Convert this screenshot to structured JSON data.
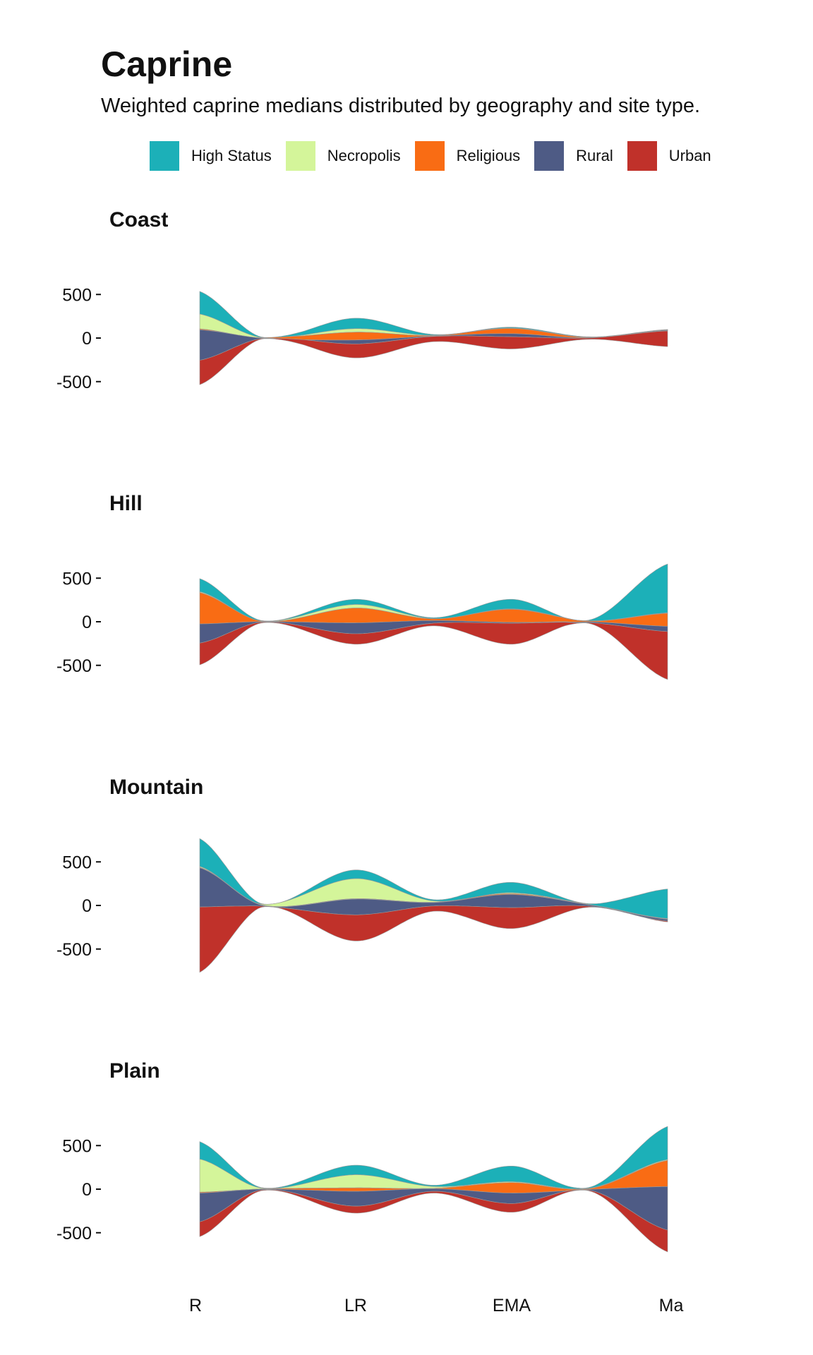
{
  "title": "Caprine",
  "subtitle": "Weighted caprine medians distributed by geography and site type.",
  "legend": [
    {
      "name": "High Status",
      "color": "#1cb0b8"
    },
    {
      "name": "Necropolis",
      "color": "#d4f59a"
    },
    {
      "name": "Religious",
      "color": "#f96c14"
    },
    {
      "name": "Rural",
      "color": "#4e5b85"
    },
    {
      "name": "Urban",
      "color": "#c0312a"
    }
  ],
  "chart_data": {
    "type": "area",
    "subtype": "streamgraph",
    "x_categories": [
      "R",
      "LR",
      "EMA",
      "Ma"
    ],
    "y_ticks": [
      -500,
      0,
      500
    ],
    "series_order_top_to_bottom": [
      "High Status",
      "Necropolis",
      "Religious",
      "Rural",
      "Urban"
    ],
    "facets": [
      {
        "name": "Coast",
        "x": [
          0,
          0.4,
          1,
          1.5,
          2,
          2.5,
          3
        ],
        "series": [
          {
            "name": "High Status",
            "values": [
              260,
              5,
              120,
              10,
              10,
              5,
              2
            ]
          },
          {
            "name": "Necropolis",
            "values": [
              170,
              3,
              40,
              3,
              5,
              2,
              2
            ]
          },
          {
            "name": "Religious",
            "values": [
              10,
              3,
              90,
              5,
              60,
              4,
              4
            ]
          },
          {
            "name": "Rural",
            "values": [
              350,
              3,
              45,
              5,
              35,
              2,
              8
            ]
          },
          {
            "name": "Urban",
            "values": [
              280,
              6,
              160,
              60,
              140,
              15,
              180
            ]
          }
        ]
      },
      {
        "name": "Hill",
        "x": [
          0,
          0.4,
          1,
          1.5,
          2,
          2.5,
          3
        ],
        "series": [
          {
            "name": "High Status",
            "values": [
              150,
              5,
              60,
              10,
              110,
              10,
              560
            ]
          },
          {
            "name": "Necropolis",
            "values": [
              10,
              2,
              40,
              3,
              5,
              2,
              5
            ]
          },
          {
            "name": "Religious",
            "values": [
              360,
              5,
              170,
              20,
              150,
              10,
              150
            ]
          },
          {
            "name": "Rural",
            "values": [
              220,
              5,
              125,
              30,
              10,
              10,
              60
            ]
          },
          {
            "name": "Urban",
            "values": [
              250,
              8,
              120,
              30,
              240,
              10,
              550
            ]
          }
        ]
      },
      {
        "name": "Mountain",
        "x": [
          0,
          0.4,
          1,
          1.5,
          2,
          2.5,
          3
        ],
        "series": [
          {
            "name": "High Status",
            "values": [
              320,
              5,
              100,
              15,
              120,
              10,
              340
            ]
          },
          {
            "name": "Necropolis",
            "values": [
              10,
              10,
              230,
              15,
              10,
              3,
              5
            ]
          },
          {
            "name": "Religious",
            "values": [
              5,
              3,
              5,
              3,
              10,
              2,
              3
            ]
          },
          {
            "name": "Rural",
            "values": [
              450,
              10,
              180,
              40,
              150,
              15,
              20
            ]
          },
          {
            "name": "Urban",
            "values": [
              750,
              10,
              300,
              60,
              240,
              10,
              10
            ]
          }
        ]
      },
      {
        "name": "Plain",
        "x": [
          0,
          0.4,
          1,
          1.5,
          2,
          2.5,
          3
        ],
        "series": [
          {
            "name": "High Status",
            "values": [
              200,
              5,
              110,
              15,
              180,
              10,
              380
            ]
          },
          {
            "name": "Necropolis",
            "values": [
              380,
              8,
              150,
              20,
              10,
              5,
              10
            ]
          },
          {
            "name": "Religious",
            "values": [
              10,
              3,
              40,
              5,
              120,
              10,
              300
            ]
          },
          {
            "name": "Rural",
            "values": [
              330,
              8,
              170,
              30,
              120,
              10,
              500
            ]
          },
          {
            "name": "Urban",
            "values": [
              170,
              8,
              80,
              20,
              100,
              8,
              250
            ]
          }
        ]
      }
    ]
  }
}
